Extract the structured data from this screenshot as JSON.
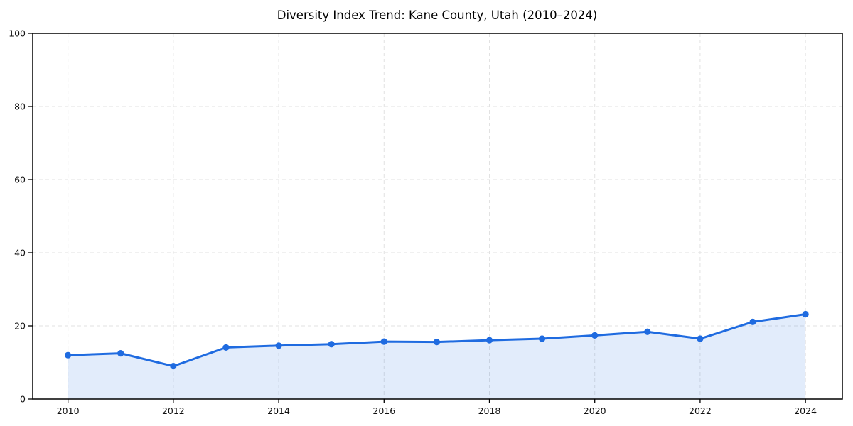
{
  "chart_data": {
    "type": "area",
    "title": "Diversity Index Trend: Kane County, Utah (2010–2024)",
    "xlabel": "",
    "ylabel": "",
    "x": [
      2010,
      2011,
      2012,
      2013,
      2014,
      2015,
      2016,
      2017,
      2018,
      2019,
      2020,
      2021,
      2022,
      2023,
      2024
    ],
    "series": [
      {
        "name": "Diversity Index",
        "values": [
          12.0,
          12.5,
          9.0,
          14.1,
          14.6,
          15.0,
          15.7,
          15.6,
          16.1,
          16.5,
          17.4,
          18.4,
          16.5,
          21.1,
          23.2
        ]
      }
    ],
    "xlim": [
      2009.33,
      2024.7
    ],
    "ylim": [
      0,
      100
    ],
    "xticks": [
      2010,
      2012,
      2014,
      2016,
      2018,
      2020,
      2022,
      2024
    ],
    "yticks": [
      0,
      20,
      40,
      60,
      80,
      100
    ],
    "grid": true,
    "grid_style": "dashed",
    "legend": "none",
    "marker": "circle",
    "colors": {
      "line": "#1f6be0",
      "marker": "#1f6be0",
      "fill": "rgba(31, 107, 224, 0.13)",
      "grid": "#e2e2e2",
      "axis": "#000000",
      "text": "#111111",
      "background": "#ffffff"
    }
  }
}
